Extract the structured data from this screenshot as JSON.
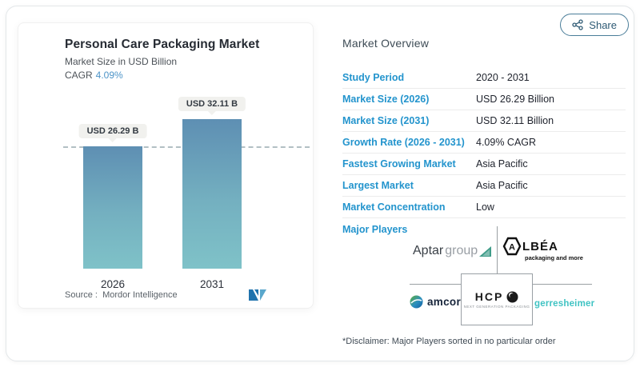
{
  "share": {
    "label": "Share"
  },
  "left_panel": {
    "title": "Personal Care Packaging Market",
    "subtitle": "Market Size in USD Billion",
    "cagr_label": "CAGR",
    "cagr_value": "4.09%",
    "bars": [
      {
        "value_label": "USD 26.29 B",
        "year": "2026"
      },
      {
        "value_label": "USD 32.11 B",
        "year": "2031"
      }
    ],
    "source_label": "Source :",
    "source_name": "Mordor Intelligence"
  },
  "overview": {
    "heading": "Market Overview",
    "rows": [
      {
        "label": "Study Period",
        "value": "2020 - 2031"
      },
      {
        "label": "Market Size (2026)",
        "value": "USD 26.29 Billion"
      },
      {
        "label": "Market Size (2031)",
        "value": "USD 32.11 Billion"
      },
      {
        "label": "Growth Rate (2026 - 2031)",
        "value": "4.09% CAGR"
      },
      {
        "label": "Fastest Growing Market",
        "value": "Asia Pacific"
      },
      {
        "label": "Largest Market",
        "value": "Asia Pacific"
      },
      {
        "label": "Market Concentration",
        "value": "Low"
      }
    ],
    "major_players": {
      "label": "Major Players",
      "players": [
        {
          "name": "AptarGroup",
          "text_primary": "Aptar",
          "text_secondary": "group"
        },
        {
          "name": "Albéa",
          "text_primary": "A",
          "text_secondary": "LBÉA",
          "tagline": "packaging and more"
        },
        {
          "name": "Amcor",
          "text_primary": "amcor"
        },
        {
          "name": "HCP Packaging",
          "text_primary": "HCP",
          "tagline": "NEXT GENERATION PACKAGING"
        },
        {
          "name": "Gerresheimer",
          "text_primary": "gerresheimer"
        }
      ]
    },
    "disclaimer": "*Disclaimer: Major Players sorted in no particular order"
  },
  "colors": {
    "label_blue": "#2394cd",
    "cagr_blue": "#4d94c8",
    "bar_gradient_top": "#5e8fb3",
    "bar_gradient_bottom": "#7fc2c8",
    "share_border": "#4a7d99",
    "aptar_teal": "#3f9c89",
    "gerresheimer_teal": "#3fc3c3",
    "mordor_dark_blue": "#2073ad",
    "mordor_light_blue": "#5aa7cc"
  },
  "chart_data": {
    "type": "bar",
    "categories": [
      "2026",
      "2031"
    ],
    "values": [
      26.29,
      32.11
    ],
    "unit": "USD Billion",
    "title": "Personal Care Packaging Market",
    "subtitle": "Market Size in USD Billion",
    "cagr": "4.09%",
    "bar_labels": [
      "USD 26.29 B",
      "USD 32.11 B"
    ],
    "reference_line": 26.29,
    "grid": false,
    "legend": "none",
    "source": "Mordor Intelligence"
  }
}
